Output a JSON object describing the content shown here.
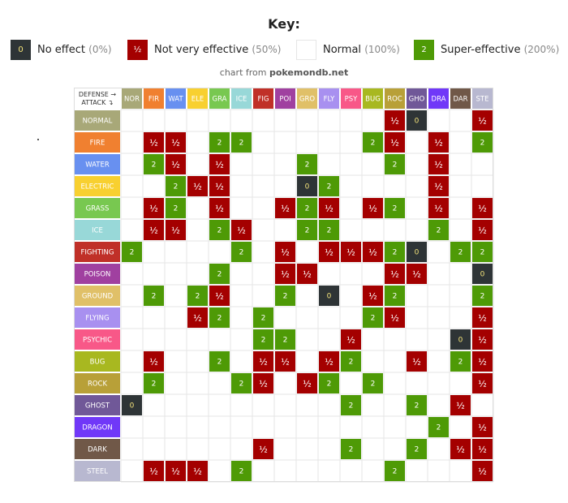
{
  "key": {
    "title": "Key:",
    "items": [
      {
        "glyph": "0",
        "label": "No effect",
        "pct": "(0%)",
        "color": "#2e3436",
        "border": "#2e3436"
      },
      {
        "glyph": "½",
        "label": "Not very effective",
        "pct": "(50%)",
        "color": "#a40000",
        "border": "#a40000"
      },
      {
        "glyph": "",
        "label": "Normal",
        "pct": "(100%)",
        "color": "#ffffff",
        "border": "#e6e6e6"
      },
      {
        "glyph": "2",
        "label": "Super-effective",
        "pct": "(200%)",
        "color": "#4e9a06",
        "border": "#4e9a06"
      }
    ]
  },
  "credit": {
    "prefix": "chart from ",
    "site": "pokemondb.net"
  },
  "chart_data": {
    "type": "table",
    "corner_defense": "DEFENSE →",
    "corner_attack": "ATTACK ↴",
    "defense_types": [
      "NOR",
      "FIR",
      "WAT",
      "ELE",
      "GRA",
      "ICE",
      "FIG",
      "POI",
      "GRO",
      "FLY",
      "PSY",
      "BUG",
      "ROC",
      "GHO",
      "DRA",
      "DAR",
      "STE"
    ],
    "attack_types": [
      "NORMAL",
      "FIRE",
      "WATER",
      "ELECTRIC",
      "GRASS",
      "ICE",
      "FIGHTING",
      "POISON",
      "GROUND",
      "FLYING",
      "PSYCHIC",
      "BUG",
      "ROCK",
      "GHOST",
      "DRAGON",
      "DARK",
      "STEEL"
    ],
    "type_colors": [
      "#a8a878",
      "#f08030",
      "#6890f0",
      "#f8d030",
      "#78c850",
      "#98d8d8",
      "#c03028",
      "#a040a0",
      "#e0c068",
      "#a890f0",
      "#f85888",
      "#a8b820",
      "#b8a038",
      "#705898",
      "#7038f8",
      "#705848",
      "#b8b8d0"
    ],
    "effect_colors": {
      "0": "#2e3436",
      "0.5": "#a40000",
      "2": "#4e9a06"
    },
    "effect_glyphs": {
      "0": "0",
      "0.5": "½",
      "2": "2"
    },
    "multipliers": [
      [
        1,
        1,
        1,
        1,
        1,
        1,
        1,
        1,
        1,
        1,
        1,
        1,
        0.5,
        0,
        1,
        1,
        0.5
      ],
      [
        1,
        0.5,
        0.5,
        1,
        2,
        2,
        1,
        1,
        1,
        1,
        1,
        2,
        0.5,
        1,
        0.5,
        1,
        2
      ],
      [
        1,
        2,
        0.5,
        1,
        0.5,
        1,
        1,
        1,
        2,
        1,
        1,
        1,
        2,
        1,
        0.5,
        1,
        1
      ],
      [
        1,
        1,
        2,
        0.5,
        0.5,
        1,
        1,
        1,
        0,
        2,
        1,
        1,
        1,
        1,
        0.5,
        1,
        1
      ],
      [
        1,
        0.5,
        2,
        1,
        0.5,
        1,
        1,
        0.5,
        2,
        0.5,
        1,
        0.5,
        2,
        1,
        0.5,
        1,
        0.5
      ],
      [
        1,
        0.5,
        0.5,
        1,
        2,
        0.5,
        1,
        1,
        2,
        2,
        1,
        1,
        1,
        1,
        2,
        1,
        0.5
      ],
      [
        2,
        1,
        1,
        1,
        1,
        2,
        1,
        0.5,
        1,
        0.5,
        0.5,
        0.5,
        2,
        0,
        1,
        2,
        2
      ],
      [
        1,
        1,
        1,
        1,
        2,
        1,
        1,
        0.5,
        0.5,
        1,
        1,
        1,
        0.5,
        0.5,
        1,
        1,
        0
      ],
      [
        1,
        2,
        1,
        2,
        0.5,
        1,
        1,
        2,
        1,
        0,
        1,
        0.5,
        2,
        1,
        1,
        1,
        2
      ],
      [
        1,
        1,
        1,
        0.5,
        2,
        1,
        2,
        1,
        1,
        1,
        1,
        2,
        0.5,
        1,
        1,
        1,
        0.5
      ],
      [
        1,
        1,
        1,
        1,
        1,
        1,
        2,
        2,
        1,
        1,
        0.5,
        1,
        1,
        1,
        1,
        0,
        0.5
      ],
      [
        1,
        0.5,
        1,
        1,
        2,
        1,
        0.5,
        0.5,
        1,
        0.5,
        2,
        1,
        1,
        0.5,
        1,
        2,
        0.5
      ],
      [
        1,
        2,
        1,
        1,
        1,
        2,
        0.5,
        1,
        0.5,
        2,
        1,
        2,
        1,
        1,
        1,
        1,
        0.5
      ],
      [
        0,
        1,
        1,
        1,
        1,
        1,
        1,
        1,
        1,
        1,
        2,
        1,
        1,
        2,
        1,
        0.5,
        1
      ],
      [
        1,
        1,
        1,
        1,
        1,
        1,
        1,
        1,
        1,
        1,
        1,
        1,
        1,
        1,
        2,
        1,
        0.5
      ],
      [
        1,
        1,
        1,
        1,
        1,
        1,
        0.5,
        1,
        1,
        1,
        2,
        1,
        1,
        2,
        1,
        0.5,
        0.5
      ],
      [
        1,
        0.5,
        0.5,
        0.5,
        1,
        2,
        1,
        1,
        1,
        1,
        1,
        1,
        2,
        1,
        1,
        1,
        0.5
      ]
    ]
  }
}
